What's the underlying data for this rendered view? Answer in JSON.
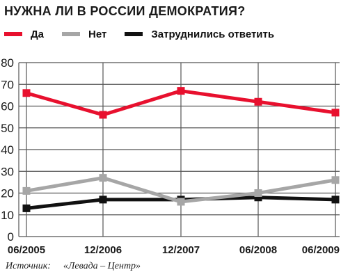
{
  "chart_data": {
    "type": "line",
    "title": "НУЖНА ЛИ В РОССИИ ДЕМОКРАТИЯ?",
    "categories": [
      "06/2005",
      "12/2006",
      "12/2007",
      "06/2008",
      "06/2009"
    ],
    "ylim": [
      0,
      80
    ],
    "yticks": [
      0,
      10,
      20,
      30,
      40,
      50,
      60,
      70,
      80
    ],
    "grid": true,
    "legend": "top",
    "series": [
      {
        "name": "Да",
        "color": "#e8102e",
        "values": [
          66,
          56,
          67,
          62,
          57
        ]
      },
      {
        "name": "Нет",
        "color": "#a6a6a6",
        "values": [
          21,
          27,
          16,
          20,
          26
        ]
      },
      {
        "name": "Затруднились ответить",
        "color": "#111111",
        "values": [
          13,
          17,
          17,
          18,
          17
        ]
      }
    ]
  },
  "source": {
    "label": "Источник:",
    "value": "«Левада – Центр»"
  }
}
